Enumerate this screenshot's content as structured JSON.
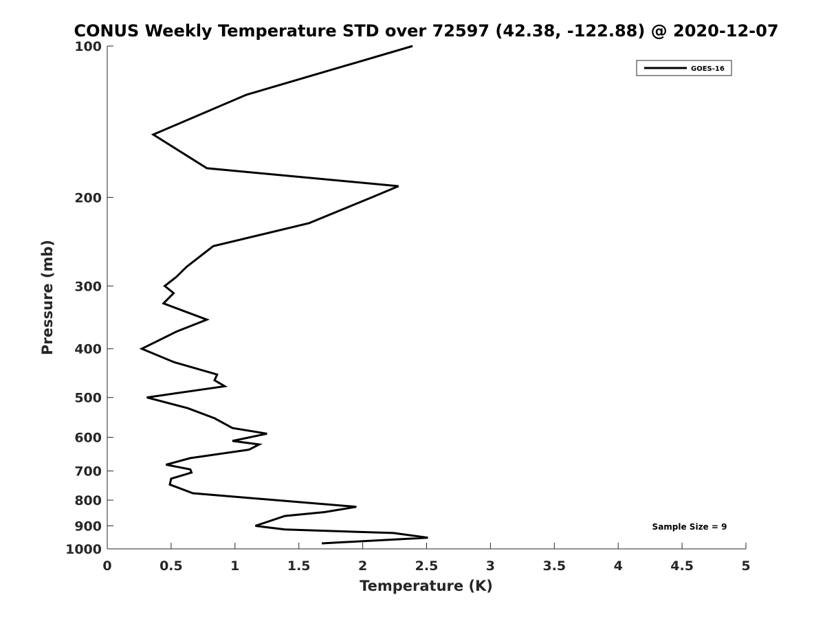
{
  "chart_data": {
    "type": "line",
    "title": "CONUS Weekly Temperature STD over 72597 (42.38, -122.88) @ 2020-12-07",
    "xlabel": "Temperature (K)",
    "ylabel": "Pressure (mb)",
    "xlim": [
      0,
      5
    ],
    "ylim": [
      1000,
      100
    ],
    "y_scale": "log",
    "y_reversed": true,
    "x_ticks": [
      "0",
      "0.5",
      "1",
      "1.5",
      "2",
      "2.5",
      "3",
      "3.5",
      "4",
      "4.5",
      "5"
    ],
    "y_ticks": [
      "100",
      "200",
      "300",
      "400",
      "500",
      "600",
      "700",
      "800",
      "900",
      "1000"
    ],
    "grid": false,
    "legend_position": "top-right",
    "annotation": "Sample Size = 9",
    "series": [
      {
        "name": "GOES-16",
        "color": "#000000",
        "points": [
          [
            2.39,
            100
          ],
          [
            1.09,
            125
          ],
          [
            0.36,
            150
          ],
          [
            0.78,
            175
          ],
          [
            2.28,
            190
          ],
          [
            2.07,
            200
          ],
          [
            1.58,
            225
          ],
          [
            0.83,
            250
          ],
          [
            0.62,
            275
          ],
          [
            0.54,
            288
          ],
          [
            0.45,
            300
          ],
          [
            0.52,
            310
          ],
          [
            0.44,
            325
          ],
          [
            0.78,
            350
          ],
          [
            0.54,
            370
          ],
          [
            0.27,
            400
          ],
          [
            0.52,
            425
          ],
          [
            0.86,
            450
          ],
          [
            0.84,
            462
          ],
          [
            0.92,
            475
          ],
          [
            0.31,
            500
          ],
          [
            0.63,
            525
          ],
          [
            0.84,
            550
          ],
          [
            0.98,
            575
          ],
          [
            1.25,
            590
          ],
          [
            0.98,
            610
          ],
          [
            1.19,
            620
          ],
          [
            1.11,
            635
          ],
          [
            0.65,
            660
          ],
          [
            0.46,
            680
          ],
          [
            0.65,
            695
          ],
          [
            0.66,
            705
          ],
          [
            0.5,
            725
          ],
          [
            0.49,
            745
          ],
          [
            0.67,
            775
          ],
          [
            1.95,
            825
          ],
          [
            1.7,
            845
          ],
          [
            1.39,
            860
          ],
          [
            1.16,
            900
          ],
          [
            1.39,
            915
          ],
          [
            2.24,
            930
          ],
          [
            2.51,
            950
          ],
          [
            1.68,
            975
          ]
        ]
      }
    ]
  }
}
